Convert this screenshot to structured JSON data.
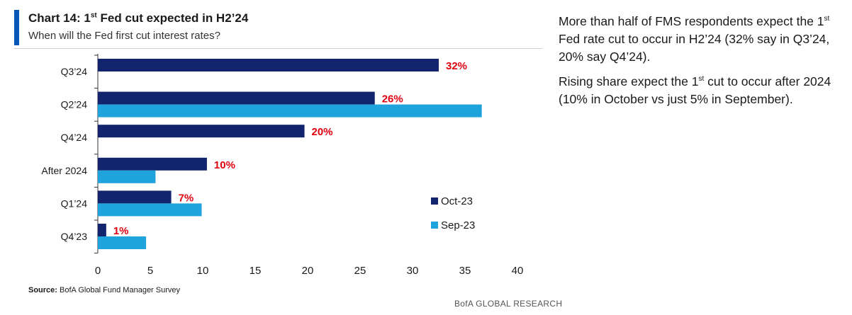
{
  "header": {
    "title_prefix": "Chart 14: 1",
    "title_sup": "st",
    "title_rest": " Fed cut expected in H2’24",
    "subtitle": "When will the Fed first cut interest rates?"
  },
  "colors": {
    "accent": "#0055b8",
    "oct": "#12246e",
    "sep": "#1ea3dd",
    "label": "#e0000f",
    "axis": "#333333"
  },
  "chart_data": {
    "type": "bar",
    "orientation": "horizontal",
    "categories": [
      "Q3’24",
      "Q2’24",
      "Q4’24",
      "After 2024",
      "Q1’24",
      "Q4’23"
    ],
    "series": [
      {
        "name": "Oct-23",
        "values": [
          32.5,
          26.4,
          19.7,
          10.4,
          7.0,
          0.8
        ]
      },
      {
        "name": "Sep-23",
        "values": [
          0,
          36.6,
          0,
          5.5,
          9.9,
          4.6
        ]
      }
    ],
    "data_labels": [
      "32%",
      "26%",
      "20%",
      "10%",
      "7%",
      "1%"
    ],
    "xlim": [
      0,
      40
    ],
    "xticks": [
      "0",
      "5",
      "10",
      "15",
      "20",
      "25",
      "30",
      "35",
      "40"
    ],
    "legend_position": "right",
    "grid": false
  },
  "footer": {
    "source_label": "Source:",
    "source_text": "BofA Global Fund Manager Survey",
    "brand": "BofA GLOBAL RESEARCH"
  },
  "commentary": {
    "p1_a": "More than half of FMS respondents expect the 1",
    "p1_sup": "st",
    "p1_b": " Fed rate cut to occur in H2’24 (32% say in Q3’24, 20% say Q4’24).",
    "p2_a": "Rising share expect the 1",
    "p2_sup": "st",
    "p2_b": " cut to occur after 2024 (10% in October vs just 5% in September)."
  }
}
